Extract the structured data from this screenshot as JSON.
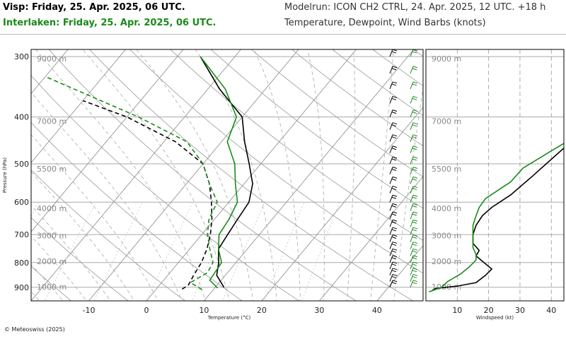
{
  "header": {
    "station1": "Visp: Friday, 25. Apr. 2025, 06 UTC.",
    "station2": "Interlaken: Friday, 25. Apr. 2025, 06 UTC.",
    "model_run": "Modelrun: ICON CH2 CTRL, 24. Apr. 2025, 12 UTC. +18 h",
    "variables": "Temperature, Dewpoint, Wind Barbs (knots)"
  },
  "colors": {
    "visp": "#000000",
    "interlaken": "#1a8a1a",
    "grid": "#999999"
  },
  "copyright": "© Meteoswiss (2025)",
  "chart_data": [
    {
      "type": "line",
      "name": "skew-t",
      "xlabel": "Temperature (°C)",
      "ylabel": "Pressure (hPa)",
      "xlim": [
        -20,
        48
      ],
      "ylim": [
        960,
        290
      ],
      "log_y": true,
      "x_ticks": [
        -10,
        0,
        10,
        20,
        30,
        40
      ],
      "x_tick_labels": [
        "-10",
        "0",
        "10",
        "20",
        "30",
        "40"
      ],
      "y_ticks": [
        300,
        400,
        500,
        600,
        700,
        800,
        900
      ],
      "y_tick_labels": [
        "300",
        "400",
        "500",
        "600",
        "700",
        "800",
        "900"
      ],
      "altitude_labels": [
        "9000 m",
        "7000 m",
        "5500 m",
        "4000 m",
        "3000 m",
        "2000 m",
        "1000 m"
      ],
      "altitude_pressures": [
        303,
        408,
        512,
        618,
        703,
        795,
        898
      ],
      "skew_deg_per_decade": 70,
      "series": [
        {
          "station": "visp",
          "kind": "temperature",
          "points": [
            [
              11.5,
              900
            ],
            [
              8.5,
              850
            ],
            [
              7.0,
              800
            ],
            [
              5.0,
              750
            ],
            [
              4.5,
              700
            ],
            [
              4.0,
              650
            ],
            [
              3.5,
              600
            ],
            [
              1.5,
              550
            ],
            [
              -2.0,
              500
            ],
            [
              -6.0,
              450
            ],
            [
              -10.0,
              400
            ],
            [
              -18.0,
              350
            ],
            [
              -26.0,
              300
            ]
          ]
        },
        {
          "station": "visp",
          "kind": "dewpoint",
          "points": [
            [
              4.5,
              908
            ],
            [
              5.0,
              890
            ],
            [
              4.5,
              850
            ],
            [
              4.0,
              800
            ],
            [
              3.0,
              750
            ],
            [
              1.5,
              700
            ],
            [
              -0.5,
              650
            ],
            [
              -3.0,
              600
            ],
            [
              -6.0,
              550
            ],
            [
              -10.0,
              500
            ],
            [
              -18.0,
              450
            ],
            [
              -30.0,
              400
            ],
            [
              -40.0,
              370
            ]
          ]
        },
        {
          "station": "interlaken",
          "kind": "temperature",
          "points": [
            [
              10.5,
              903
            ],
            [
              8.0,
              870
            ],
            [
              7.5,
              800
            ],
            [
              5.0,
              750
            ],
            [
              3.0,
              700
            ],
            [
              2.5,
              650
            ],
            [
              1.5,
              600
            ],
            [
              -1.5,
              550
            ],
            [
              -4.5,
              500
            ],
            [
              -9.0,
              450
            ],
            [
              -11.0,
              400
            ],
            [
              -17.0,
              350
            ],
            [
              -26.0,
              300
            ]
          ]
        },
        {
          "station": "interlaken",
          "kind": "dewpoint",
          "points": [
            [
              8.0,
              910
            ],
            [
              5.0,
              880
            ],
            [
              6.5,
              840
            ],
            [
              6.0,
              800
            ],
            [
              3.5,
              750
            ],
            [
              1.0,
              700
            ],
            [
              -1.0,
              650
            ],
            [
              -2.0,
              600
            ],
            [
              -6.0,
              550
            ],
            [
              -10.0,
              500
            ],
            [
              -16.0,
              450
            ],
            [
              -28.0,
              400
            ],
            [
              -50.0,
              330
            ]
          ]
        }
      ]
    },
    {
      "type": "line",
      "name": "windspeed-profile",
      "xlabel": "Windspeed (kt)",
      "xlim": [
        0,
        44
      ],
      "ylim": [
        960,
        290
      ],
      "log_y": true,
      "x_ticks": [
        10,
        20,
        30,
        40
      ],
      "x_tick_labels": [
        "10",
        "20",
        "30",
        "40"
      ],
      "series": [
        {
          "station": "visp",
          "points": [
            [
              2,
              915
            ],
            [
              3,
              905
            ],
            [
              10,
              895
            ],
            [
              16,
              880
            ],
            [
              19,
              850
            ],
            [
              21,
              825
            ],
            [
              18,
              795
            ],
            [
              16,
              775
            ],
            [
              17,
              755
            ],
            [
              15,
              730
            ],
            [
              15,
              700
            ],
            [
              16,
              670
            ],
            [
              18,
              640
            ],
            [
              21,
              615
            ],
            [
              27,
              580
            ],
            [
              34,
              530
            ],
            [
              43,
              470
            ],
            [
              48,
              440
            ]
          ]
        },
        {
          "station": "interlaken",
          "points": [
            [
              1,
              920
            ],
            [
              5,
              900
            ],
            [
              7,
              875
            ],
            [
              11,
              845
            ],
            [
              14,
              815
            ],
            [
              16,
              790
            ],
            [
              16,
              770
            ],
            [
              15,
              745
            ],
            [
              15,
              720
            ],
            [
              15,
              700
            ],
            [
              15,
              670
            ],
            [
              16,
              640
            ],
            [
              17,
              615
            ],
            [
              19,
              590
            ],
            [
              27,
              545
            ],
            [
              31,
              510
            ],
            [
              40,
              470
            ],
            [
              50,
              430
            ]
          ]
        }
      ]
    }
  ]
}
